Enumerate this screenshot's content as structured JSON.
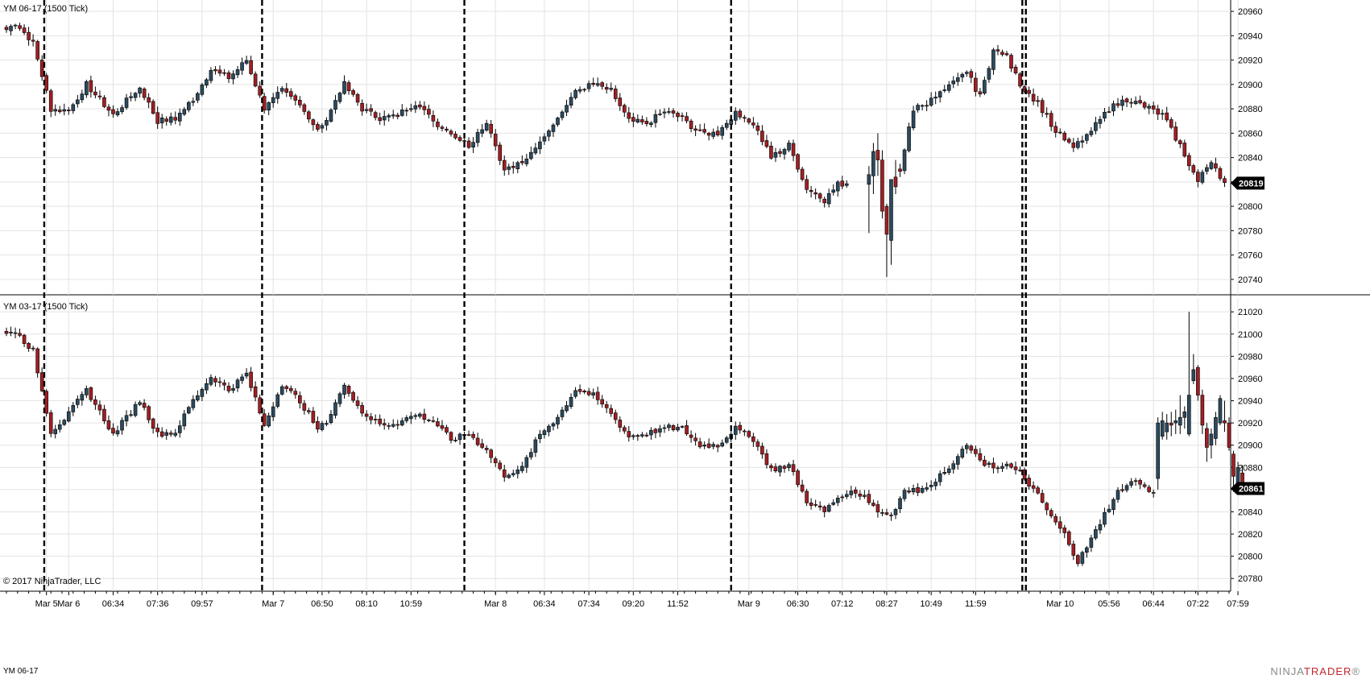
{
  "footer": {
    "instrument": "YM 06-17",
    "brand_a": "NINJA",
    "brand_b": "TRADER",
    "brand_mark": "®"
  },
  "colors": {
    "up": "#2c4a5e",
    "down": "#a11f23",
    "grid": "#e3e3e3",
    "session": "#000000",
    "price_box": "#000000"
  },
  "chart_data": [
    {
      "type": "candlestick",
      "title": "YM 06-17 (1500 Tick)",
      "ylim": [
        20730,
        20968
      ],
      "yticks": [
        20740,
        20760,
        20780,
        20800,
        20820,
        20840,
        20860,
        20880,
        20900,
        20920,
        20940,
        20960
      ],
      "last_price": "20819",
      "anchors": [
        [
          0,
          20945
        ],
        [
          2,
          20950
        ],
        [
          6,
          20935
        ],
        [
          10,
          20880
        ],
        [
          14,
          20878
        ],
        [
          18,
          20900
        ],
        [
          24,
          20875
        ],
        [
          30,
          20898
        ],
        [
          34,
          20870
        ],
        [
          38,
          20872
        ],
        [
          42,
          20888
        ],
        [
          46,
          20912
        ],
        [
          50,
          20905
        ],
        [
          54,
          20920
        ],
        [
          58,
          20880
        ],
        [
          62,
          20895
        ],
        [
          66,
          20884
        ],
        [
          70,
          20862
        ],
        [
          72,
          20873
        ],
        [
          76,
          20900
        ],
        [
          80,
          20880
        ],
        [
          84,
          20872
        ],
        [
          88,
          20875
        ],
        [
          92,
          20885
        ],
        [
          96,
          20870
        ],
        [
          100,
          20860
        ],
        [
          104,
          20850
        ],
        [
          108,
          20870
        ],
        [
          112,
          20830
        ],
        [
          116,
          20835
        ],
        [
          120,
          20855
        ],
        [
          124,
          20872
        ],
        [
          128,
          20895
        ],
        [
          132,
          20900
        ],
        [
          136,
          20895
        ],
        [
          140,
          20870
        ],
        [
          144,
          20868
        ],
        [
          148,
          20878
        ],
        [
          152,
          20872
        ],
        [
          156,
          20860
        ],
        [
          160,
          20860
        ],
        [
          164,
          20878
        ],
        [
          168,
          20868
        ],
        [
          172,
          20840
        ],
        [
          176,
          20850
        ],
        [
          180,
          20815
        ],
        [
          184,
          20805
        ],
        [
          187,
          20818
        ],
        [
          189,
          20819
        ]
      ],
      "sparse": [
        {
          "i": 194,
          "o": 20818,
          "h": 20833,
          "l": 20778,
          "c": 20826
        },
        {
          "i": 195,
          "o": 20825,
          "h": 20852,
          "l": 20810,
          "c": 20845
        },
        {
          "i": 196,
          "o": 20846,
          "h": 20860,
          "l": 20825,
          "c": 20838
        },
        {
          "i": 197,
          "o": 20838,
          "h": 20846,
          "l": 20790,
          "c": 20796
        },
        {
          "i": 198,
          "o": 20800,
          "h": 20802,
          "l": 20742,
          "c": 20777
        },
        {
          "i": 199,
          "o": 20772,
          "h": 20822,
          "l": 20752,
          "c": 20822
        },
        {
          "i": 200,
          "o": 20824,
          "h": 20838,
          "l": 20810,
          "c": 20816
        }
      ],
      "anchors2": [
        [
          201,
          20830
        ],
        [
          204,
          20880
        ],
        [
          208,
          20887
        ],
        [
          212,
          20898
        ],
        [
          216,
          20910
        ],
        [
          219,
          20890
        ],
        [
          222,
          20928
        ],
        [
          225,
          20922
        ],
        [
          228,
          20900
        ],
        [
          232,
          20885
        ],
        [
          236,
          20862
        ],
        [
          240,
          20848
        ],
        [
          244,
          20862
        ],
        [
          248,
          20880
        ],
        [
          252,
          20888
        ],
        [
          256,
          20882
        ],
        [
          260,
          20875
        ],
        [
          264,
          20850
        ],
        [
          268,
          20820
        ],
        [
          271,
          20838
        ],
        [
          274,
          20819
        ]
      ]
    },
    {
      "type": "candlestick",
      "title": "YM 03-17 (1500 Tick)",
      "ylim": [
        20770,
        21031
      ],
      "yticks": [
        20780,
        20800,
        20820,
        20840,
        20860,
        20880,
        20900,
        20920,
        20940,
        20960,
        20980,
        21000,
        21020
      ],
      "last_price": "20861",
      "anchors": [
        [
          0,
          21000
        ],
        [
          2,
          21002
        ],
        [
          6,
          20985
        ],
        [
          10,
          20912
        ],
        [
          14,
          20928
        ],
        [
          18,
          20950
        ],
        [
          24,
          20910
        ],
        [
          30,
          20940
        ],
        [
          34,
          20910
        ],
        [
          38,
          20912
        ],
        [
          42,
          20940
        ],
        [
          46,
          20962
        ],
        [
          50,
          20950
        ],
        [
          54,
          20964
        ],
        [
          58,
          20918
        ],
        [
          62,
          20955
        ],
        [
          66,
          20940
        ],
        [
          70,
          20915
        ],
        [
          72,
          20920
        ],
        [
          76,
          20955
        ],
        [
          80,
          20930
        ],
        [
          84,
          20918
        ],
        [
          88,
          20920
        ],
        [
          92,
          20928
        ],
        [
          96,
          20922
        ],
        [
          100,
          20905
        ],
        [
          104,
          20910
        ],
        [
          108,
          20895
        ],
        [
          112,
          20873
        ],
        [
          116,
          20880
        ],
        [
          120,
          20910
        ],
        [
          124,
          20925
        ],
        [
          128,
          20950
        ],
        [
          132,
          20945
        ],
        [
          136,
          20928
        ],
        [
          140,
          20908
        ],
        [
          144,
          20910
        ],
        [
          148,
          20916
        ],
        [
          152,
          20915
        ],
        [
          156,
          20900
        ],
        [
          160,
          20900
        ],
        [
          164,
          20915
        ],
        [
          168,
          20905
        ],
        [
          172,
          20878
        ],
        [
          176,
          20882
        ],
        [
          180,
          20850
        ],
        [
          184,
          20840
        ],
        [
          187,
          20853
        ],
        [
          189,
          20858
        ],
        [
          193,
          20855
        ],
        [
          196,
          20840
        ],
        [
          199,
          20838
        ],
        [
          202,
          20858
        ],
        [
          206,
          20860
        ],
        [
          210,
          20872
        ],
        [
          214,
          20890
        ],
        [
          216,
          20900
        ],
        [
          219,
          20885
        ],
        [
          222,
          20880
        ],
        [
          225,
          20882
        ],
        [
          228,
          20875
        ],
        [
          232,
          20855
        ],
        [
          235,
          20835
        ],
        [
          238,
          20820
        ],
        [
          241,
          20795
        ],
        [
          244,
          20815
        ],
        [
          247,
          20838
        ],
        [
          250,
          20858
        ],
        [
          253,
          20868
        ],
        [
          256,
          20864
        ],
        [
          258,
          20856
        ]
      ],
      "sparse": [
        {
          "i": 259,
          "o": 20870,
          "h": 20925,
          "l": 20860,
          "c": 20920
        },
        {
          "i": 260,
          "o": 20908,
          "h": 20930,
          "l": 20905,
          "c": 20922
        },
        {
          "i": 261,
          "o": 20912,
          "h": 20928,
          "l": 20905,
          "c": 20920
        },
        {
          "i": 262,
          "o": 20920,
          "h": 20930,
          "l": 20908,
          "c": 20918
        },
        {
          "i": 263,
          "o": 20920,
          "h": 20932,
          "l": 20910,
          "c": 20922
        },
        {
          "i": 264,
          "o": 20918,
          "h": 20945,
          "l": 20910,
          "c": 20925
        },
        {
          "i": 265,
          "o": 20925,
          "h": 20935,
          "l": 20915,
          "c": 20930
        },
        {
          "i": 266,
          "o": 20910,
          "h": 21020,
          "l": 20908,
          "c": 20945
        },
        {
          "i": 267,
          "o": 20958,
          "h": 20982,
          "l": 20955,
          "c": 20968
        },
        {
          "i": 268,
          "o": 20970,
          "h": 20972,
          "l": 20940,
          "c": 20945
        },
        {
          "i": 269,
          "o": 20945,
          "h": 20950,
          "l": 20910,
          "c": 20918
        },
        {
          "i": 270,
          "o": 20915,
          "h": 20920,
          "l": 20885,
          "c": 20898
        },
        {
          "i": 271,
          "o": 20900,
          "h": 20915,
          "l": 20888,
          "c": 20910
        },
        {
          "i": 272,
          "o": 20906,
          "h": 20930,
          "l": 20900,
          "c": 20925
        },
        {
          "i": 273,
          "o": 20920,
          "h": 20945,
          "l": 20918,
          "c": 20942
        },
        {
          "i": 274,
          "o": 20922,
          "h": 20940,
          "l": 20912,
          "c": 20920
        },
        {
          "i": 275,
          "o": 20920,
          "h": 20925,
          "l": 20895,
          "c": 20898
        },
        {
          "i": 276,
          "o": 20892,
          "h": 20895,
          "l": 20858,
          "c": 20872
        },
        {
          "i": 277,
          "o": 20864,
          "h": 20885,
          "l": 20860,
          "c": 20880
        },
        {
          "i": 278,
          "o": 20875,
          "h": 20882,
          "l": 20855,
          "c": 20861
        }
      ]
    }
  ],
  "x_axis": {
    "labels": [
      {
        "t": "Mar 5",
        "i": 9
      },
      {
        "t": "Mar 6",
        "i": 14
      },
      {
        "t": "06:34",
        "i": 24
      },
      {
        "t": "07:36",
        "i": 34
      },
      {
        "t": "09:57",
        "i": 44
      },
      {
        "t": "Mar 7",
        "i": 60
      },
      {
        "t": "06:50",
        "i": 71
      },
      {
        "t": "08:10",
        "i": 81
      },
      {
        "t": "10:59",
        "i": 91
      },
      {
        "t": "Mar 8",
        "i": 110
      },
      {
        "t": "06:34",
        "i": 121
      },
      {
        "t": "07:34",
        "i": 131
      },
      {
        "t": "09:20",
        "i": 141
      },
      {
        "t": "11:52",
        "i": 151
      },
      {
        "t": "Mar 9",
        "i": 167
      },
      {
        "t": "06:30",
        "i": 178
      },
      {
        "t": "07:12",
        "i": 188
      },
      {
        "t": "08:27",
        "i": 198
      },
      {
        "t": "10:49",
        "i": 208
      },
      {
        "t": "11:59",
        "i": 218
      },
      {
        "t": "Mar 10",
        "i": 237
      },
      {
        "t": "05:56",
        "i": 248
      },
      {
        "t": "06:44",
        "i": 258
      },
      {
        "t": "07:22",
        "i": 268
      },
      {
        "t": "07:59",
        "i": 277
      }
    ],
    "sessions": [
      8.5,
      57.5,
      103,
      163,
      228.5,
      229.3
    ]
  },
  "copyright": "© 2017 NinjaTrader, LLC"
}
